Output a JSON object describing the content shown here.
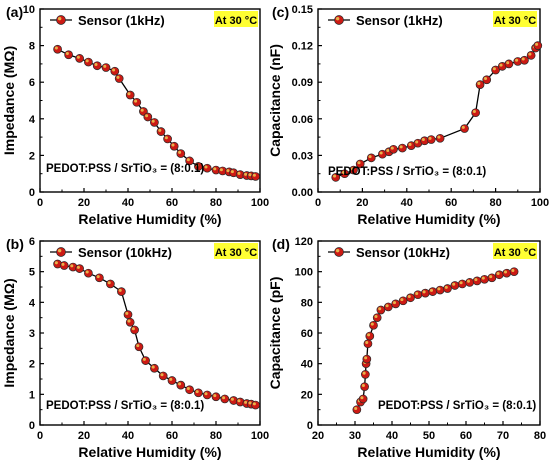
{
  "colors": {
    "marker_fill": "#cc1a14",
    "marker_center": "#e8b24a",
    "marker_stroke": "#2a2a2a",
    "line": "#000000",
    "badge_bg": "#ffff33",
    "axis": "#000000"
  },
  "chart_data": [
    {
      "type": "line",
      "panel_label": "(a)",
      "xlabel": "Relative Humidity (%)",
      "ylabel": "Impedance (MΩ)",
      "xlim": [
        0,
        100
      ],
      "ylim": [
        0,
        10
      ],
      "xticks": [
        "0",
        "20",
        "40",
        "60",
        "80",
        "100"
      ],
      "yticks": [
        "0",
        "2",
        "4",
        "6",
        "8",
        "10"
      ],
      "legend": "Sensor (1kHz)",
      "badge": "At 30 °C",
      "annotation": "PEDOT:PSS / SrTiO₃ = (8:0.1)",
      "grid": false,
      "series": [
        {
          "name": "Sensor (1kHz)",
          "x": [
            8,
            13,
            18,
            22,
            26,
            30,
            34,
            36,
            41,
            44,
            47,
            49,
            52,
            55,
            58,
            61,
            64,
            68,
            72,
            76,
            80,
            83,
            86,
            88,
            91,
            94,
            96,
            98
          ],
          "y": [
            7.8,
            7.5,
            7.3,
            7.1,
            6.9,
            6.8,
            6.6,
            6.2,
            5.3,
            4.9,
            4.4,
            4.1,
            3.8,
            3.3,
            2.9,
            2.5,
            2.1,
            1.7,
            1.4,
            1.3,
            1.2,
            1.15,
            1.1,
            1.05,
            0.95,
            0.9,
            0.88,
            0.85
          ]
        }
      ]
    },
    {
      "type": "line",
      "panel_label": "(c)",
      "xlabel": "Relative Humidity (%)",
      "ylabel": "Capacitance (nF)",
      "xlim": [
        0,
        100
      ],
      "ylim": [
        0,
        0.15
      ],
      "xticks": [
        "0",
        "20",
        "40",
        "60",
        "80",
        "100"
      ],
      "yticks": [
        "0.00",
        "0.03",
        "0.06",
        "0.09",
        "0.12",
        "0.15"
      ],
      "legend": "Sensor (1kHz)",
      "badge": "At 30 °C",
      "annotation": "PEDOT:PSS / SrTiO₃ = (8:0.1)",
      "grid": false,
      "series": [
        {
          "name": "Sensor (1kHz)",
          "x": [
            8,
            12,
            16,
            19,
            24,
            29,
            32,
            34,
            38,
            42,
            45,
            48,
            51,
            55,
            66,
            71,
            73,
            76,
            80,
            83,
            86,
            90,
            93,
            96,
            98,
            99
          ],
          "y": [
            0.012,
            0.015,
            0.018,
            0.023,
            0.028,
            0.031,
            0.033,
            0.035,
            0.036,
            0.038,
            0.04,
            0.042,
            0.043,
            0.044,
            0.052,
            0.065,
            0.088,
            0.092,
            0.1,
            0.103,
            0.105,
            0.107,
            0.108,
            0.112,
            0.118,
            0.12
          ]
        }
      ]
    },
    {
      "type": "line",
      "panel_label": "(b)",
      "xlabel": "Relative Humidity (%)",
      "ylabel": "Impedance (MΩ)",
      "xlim": [
        0,
        100
      ],
      "ylim": [
        0,
        6
      ],
      "xticks": [
        "0",
        "20",
        "40",
        "60",
        "80",
        "100"
      ],
      "yticks": [
        "0",
        "1",
        "2",
        "3",
        "4",
        "5",
        "6"
      ],
      "legend": "Sensor (10kHz)",
      "badge": "At 30 °C",
      "annotation": "PEDOT:PSS / SrTiO₃ = (8:0.1)",
      "grid": false,
      "series": [
        {
          "name": "Sensor (10kHz)",
          "x": [
            8,
            11,
            15,
            18,
            22,
            27,
            32,
            37,
            40,
            41,
            43,
            45,
            48,
            52,
            56,
            60,
            64,
            68,
            72,
            76,
            80,
            84,
            88,
            91,
            94,
            96,
            98
          ],
          "y": [
            5.25,
            5.2,
            5.15,
            5.1,
            4.95,
            4.8,
            4.6,
            4.35,
            3.6,
            3.35,
            3.1,
            2.55,
            2.1,
            1.85,
            1.6,
            1.45,
            1.3,
            1.15,
            1.05,
            0.98,
            0.92,
            0.85,
            0.8,
            0.75,
            0.7,
            0.68,
            0.65
          ]
        }
      ]
    },
    {
      "type": "line",
      "panel_label": "(d)",
      "xlabel": "Relative Humidity (%)",
      "ylabel": "Capacitance (pF)",
      "xlim": [
        20,
        80
      ],
      "ylim": [
        0,
        120
      ],
      "xticks": [
        "20",
        "30",
        "40",
        "50",
        "60",
        "70",
        "80"
      ],
      "yticks": [
        "0",
        "20",
        "40",
        "60",
        "80",
        "100",
        "120"
      ],
      "legend": "Sensor (10kHz)",
      "badge": "At 30 °C",
      "annotation": "PEDOT:PSS / SrTiO₃ = (8:0.1)",
      "grid": false,
      "series": [
        {
          "name": "Sensor (10kHz)",
          "x": [
            30.5,
            31.5,
            32.2,
            32.6,
            32.8,
            33,
            33.2,
            33.5,
            34,
            35,
            36,
            37,
            39,
            41,
            43,
            45,
            47,
            49,
            51,
            53,
            55,
            57,
            59,
            61,
            63,
            65,
            67,
            69,
            71,
            73
          ],
          "y": [
            10,
            15,
            17,
            25,
            33,
            40,
            43,
            53,
            58,
            65,
            70,
            75,
            77,
            79,
            81,
            83,
            85,
            86,
            87,
            88,
            89,
            91,
            92,
            93,
            94,
            95,
            96,
            98,
            99,
            100
          ]
        }
      ]
    }
  ]
}
